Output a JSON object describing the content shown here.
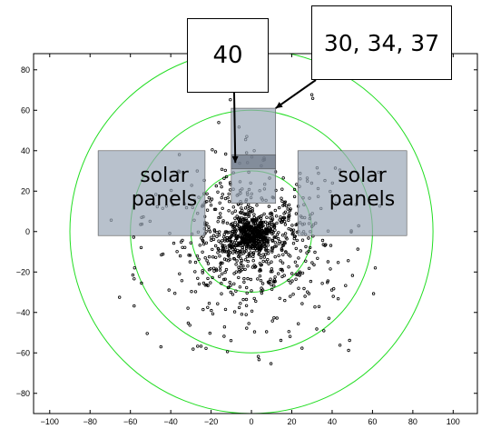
{
  "chart_data": {
    "type": "scatter",
    "title": "",
    "xlabel": "",
    "ylabel": "",
    "xlim": [
      -108,
      112
    ],
    "ylim": [
      -90,
      88
    ],
    "xticks": [
      -100,
      -80,
      -60,
      -40,
      -20,
      0,
      20,
      40,
      60,
      80,
      100
    ],
    "yticks": [
      -80,
      -60,
      -40,
      -20,
      0,
      20,
      40,
      60,
      80
    ],
    "xtick_labels": [
      "−100",
      "−80",
      "−60",
      "−40",
      "−20",
      "0",
      "20",
      "40",
      "60",
      "80",
      "100"
    ],
    "ytick_labels": [
      "−80",
      "−60",
      "−40",
      "−20",
      "0",
      "20",
      "40",
      "60",
      "80"
    ],
    "grid": false,
    "circles": [
      {
        "cx": 0,
        "cy": 0,
        "r": 30,
        "color": "#22dd22"
      },
      {
        "cx": 0,
        "cy": 0,
        "r": 60,
        "color": "#22dd22"
      },
      {
        "cx": 0,
        "cy": 0,
        "r": 90,
        "color": "#22dd22"
      }
    ],
    "rects": [
      {
        "name": "solar panel left",
        "x0": -76,
        "x1": -23,
        "y0": -2,
        "y1": 40,
        "fill": "#9aa6b6",
        "opacity": 0.7
      },
      {
        "name": "solar panel right",
        "x0": 23,
        "x1": 77,
        "y0": -2,
        "y1": 40,
        "fill": "#9aa6b6",
        "opacity": 0.7
      },
      {
        "name": "instrument 30, 34, 37",
        "x0": -10,
        "x1": 12,
        "y0": 14,
        "y1": 61,
        "fill": "#9aa6b6",
        "opacity": 0.7
      },
      {
        "name": "instrument 40",
        "x0": -10,
        "x1": 12,
        "y0": 31,
        "y1": 38,
        "fill": "#6c7686",
        "opacity": 0.7
      }
    ],
    "scatter": {
      "marker": "open circle",
      "color": "#000000",
      "approx_count": 1200,
      "distribution": "dense core near (0, 0), sparse halo out to about 60 units, slightly extended toward negative y"
    },
    "annotations": [
      {
        "text": "40",
        "arrow_to": [
          -8,
          34
        ]
      },
      {
        "text": "30, 34, 37",
        "arrow_to": [
          12,
          61
        ]
      },
      {
        "text": "solar\npanels",
        "at": [
          -50,
          19
        ]
      },
      {
        "text": "solar\npanels",
        "at": [
          50,
          19
        ]
      }
    ]
  }
}
